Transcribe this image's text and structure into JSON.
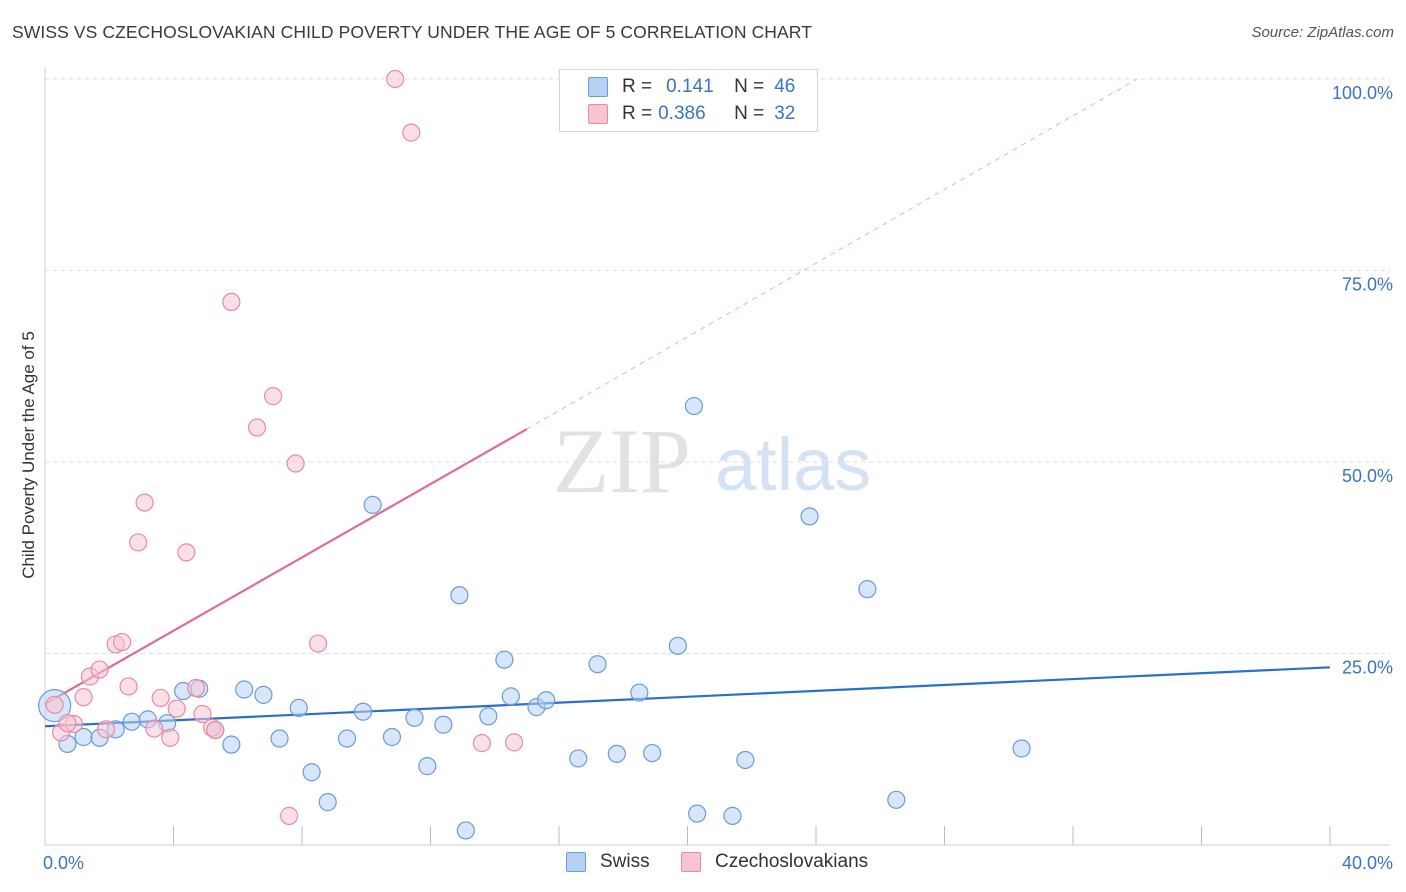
{
  "header": {
    "title": "SWISS VS CZECHOSLOVAKIAN CHILD POVERTY UNDER THE AGE OF 5 CORRELATION CHART",
    "source": "Source: ZipAtlas.com"
  },
  "legend_box": {
    "rows": [
      {
        "r_label": "R =",
        "r_value": "0.141",
        "n_label": "N =",
        "n_value": "46"
      },
      {
        "r_label": "R =",
        "r_value": "0.386",
        "n_label": "N =",
        "n_value": "32"
      }
    ]
  },
  "watermark": {
    "zip": "ZIP",
    "atlas": "atlas"
  },
  "colors": {
    "swiss_fill": "#b7d1f5",
    "swiss_stroke": "#6b9bd8",
    "swiss_line": "#2a6fcc",
    "czech_fill": "#f8c4d2",
    "czech_stroke": "#e98aa6",
    "czech_line": "#e06b93",
    "tick_label": "#3a74c4",
    "grid": "#dcdcdc"
  },
  "chart_data": {
    "type": "scatter",
    "title": "SWISS VS CZECHOSLOVAKIAN CHILD POVERTY UNDER THE AGE OF 5 CORRELATION CHART",
    "xlabel": "",
    "ylabel": "Child Poverty Under the Age of 5",
    "xlim": [
      0,
      40
    ],
    "ylim": [
      0,
      100
    ],
    "x_tick_labels": [
      "0.0%",
      "40.0%"
    ],
    "y_ticks": [
      25,
      50,
      75,
      100
    ],
    "y_tick_labels": [
      "25.0%",
      "50.0%",
      "75.0%",
      "100.0%"
    ],
    "grid": true,
    "legend_position": "bottom",
    "series": [
      {
        "name": "Swiss",
        "points": [
          [
            0.3,
            18.2,
            "large"
          ],
          [
            0.7,
            13.2
          ],
          [
            1.2,
            14.1
          ],
          [
            1.7,
            14.0
          ],
          [
            2.2,
            15.1
          ],
          [
            2.7,
            16.1
          ],
          [
            3.2,
            16.4
          ],
          [
            3.8,
            15.9
          ],
          [
            4.3,
            20.1
          ],
          [
            4.8,
            20.4
          ],
          [
            5.3,
            15.0
          ],
          [
            5.8,
            13.1
          ],
          [
            6.2,
            20.3
          ],
          [
            6.8,
            19.6
          ],
          [
            7.3,
            13.9
          ],
          [
            7.9,
            17.9
          ],
          [
            8.3,
            9.5
          ],
          [
            8.8,
            5.6
          ],
          [
            9.4,
            13.9
          ],
          [
            9.9,
            17.4
          ],
          [
            10.2,
            44.4
          ],
          [
            10.8,
            14.1
          ],
          [
            11.5,
            16.6
          ],
          [
            11.9,
            10.3
          ],
          [
            12.4,
            15.7
          ],
          [
            12.9,
            32.6
          ],
          [
            13.1,
            1.9
          ],
          [
            13.8,
            16.8
          ],
          [
            14.3,
            24.2
          ],
          [
            14.5,
            19.4
          ],
          [
            15.3,
            18.0
          ],
          [
            15.6,
            18.9
          ],
          [
            16.6,
            11.3
          ],
          [
            17.2,
            23.6
          ],
          [
            17.8,
            11.9
          ],
          [
            18.5,
            19.9
          ],
          [
            18.9,
            12.0
          ],
          [
            19.7,
            26.0
          ],
          [
            20.2,
            57.3
          ],
          [
            20.3,
            4.1
          ],
          [
            21.4,
            3.8
          ],
          [
            21.8,
            11.1
          ],
          [
            23.8,
            42.9
          ],
          [
            25.6,
            33.4
          ],
          [
            26.5,
            5.9
          ],
          [
            30.4,
            12.6
          ]
        ],
        "trend": {
          "x": [
            0,
            40
          ],
          "y": [
            15.5,
            23.2
          ]
        }
      },
      {
        "name": "Czechoslovakians",
        "points": [
          [
            0.3,
            18.3
          ],
          [
            0.5,
            14.7
          ],
          [
            0.9,
            15.8
          ],
          [
            1.2,
            19.3
          ],
          [
            1.4,
            22.0
          ],
          [
            1.7,
            22.9
          ],
          [
            1.9,
            15.1
          ],
          [
            2.2,
            26.2
          ],
          [
            2.4,
            26.5
          ],
          [
            2.6,
            20.7
          ],
          [
            2.9,
            39.5
          ],
          [
            3.1,
            44.7
          ],
          [
            3.4,
            15.2
          ],
          [
            3.6,
            19.2
          ],
          [
            3.9,
            14.0
          ],
          [
            4.1,
            17.8
          ],
          [
            4.4,
            38.2
          ],
          [
            4.7,
            20.5
          ],
          [
            4.9,
            17.1
          ],
          [
            5.2,
            15.3
          ],
          [
            5.3,
            15.0
          ],
          [
            5.8,
            70.9
          ],
          [
            6.6,
            54.5
          ],
          [
            7.1,
            58.6
          ],
          [
            7.6,
            3.8
          ],
          [
            7.8,
            49.8
          ],
          [
            8.5,
            26.3
          ],
          [
            10.9,
            100.0
          ],
          [
            11.4,
            93.0
          ],
          [
            13.6,
            13.3
          ],
          [
            14.6,
            13.4
          ],
          [
            0.7,
            15.9
          ]
        ],
        "trend": {
          "x": [
            0,
            15
          ],
          "y": [
            18.4,
            54.3
          ]
        },
        "trend_extension": {
          "x": [
            15,
            34
          ],
          "y": [
            54.3,
            100
          ]
        }
      }
    ]
  },
  "bottom_legend": {
    "swiss_label": "Swiss",
    "czech_label": "Czechoslovakians"
  }
}
